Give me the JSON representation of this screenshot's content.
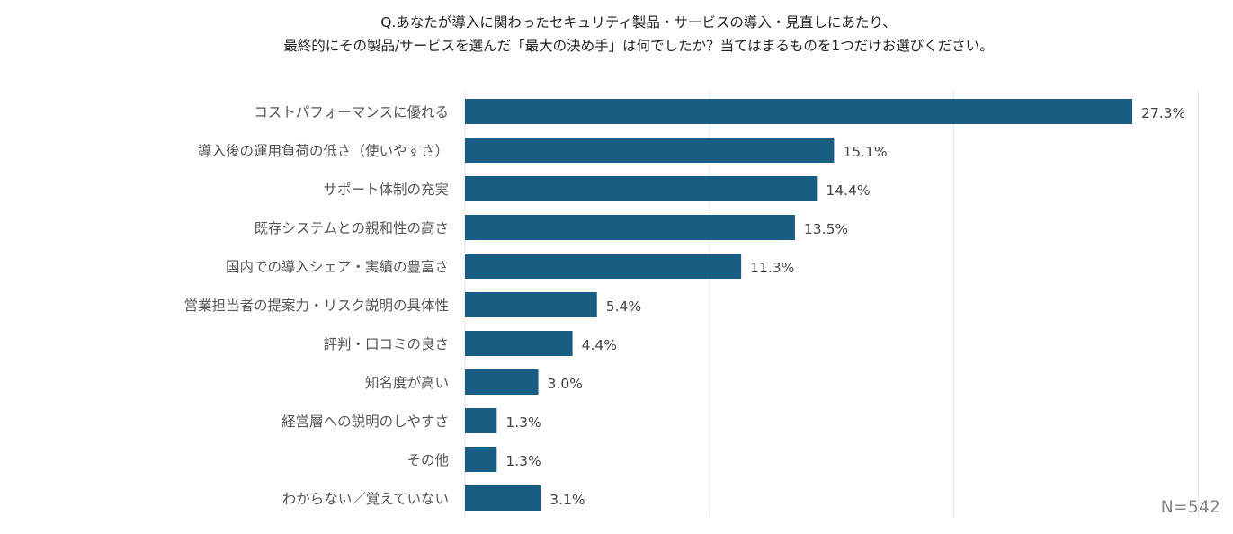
{
  "title_lines": [
    "Q.あなたが導入に関わったセキュリティ製品・サービスの導入・見直しにあたり、",
    "最終的にその製品/サービスを選んだ「最大の決め手」は何でしたか？当てはまるものを1つだけお選びください。"
  ],
  "sample_size": "N=542",
  "colors": {
    "bar": "#175E82",
    "grid": "#E6E6E6"
  },
  "chart_data": {
    "type": "bar",
    "orientation": "horizontal",
    "title": "Q.あなたが導入に関わったセキュリティ製品・サービスの導入・見直しにあたり、最終的にその製品/サービスを選んだ「最大の決め手」は何でしたか？当てはまるものを1つだけお選びください。",
    "categories": [
      "コストパフォーマンスに優れる",
      "導入後の運用負荷の低さ（使いやすさ）",
      "サポート体制の充実",
      "既存システムとの親和性の高さ",
      "国内での導入シェア・実績の豊富さ",
      "営業担当者の提案力・リスク説明の具体性",
      "評判・口コミの良さ",
      "知名度が高い",
      "経営層への説明のしやすさ",
      "その他",
      "わからない／覚えていない"
    ],
    "values": [
      27.3,
      15.1,
      14.4,
      13.5,
      11.3,
      5.4,
      4.4,
      3.0,
      1.3,
      1.3,
      3.1
    ],
    "value_labels": [
      "27.3%",
      "15.1%",
      "14.4%",
      "13.5%",
      "11.3%",
      "5.4%",
      "4.4%",
      "3.0%",
      "1.3%",
      "1.3%",
      "3.1%"
    ],
    "xlim": [
      0,
      30
    ],
    "grid": true,
    "unit": "%"
  }
}
